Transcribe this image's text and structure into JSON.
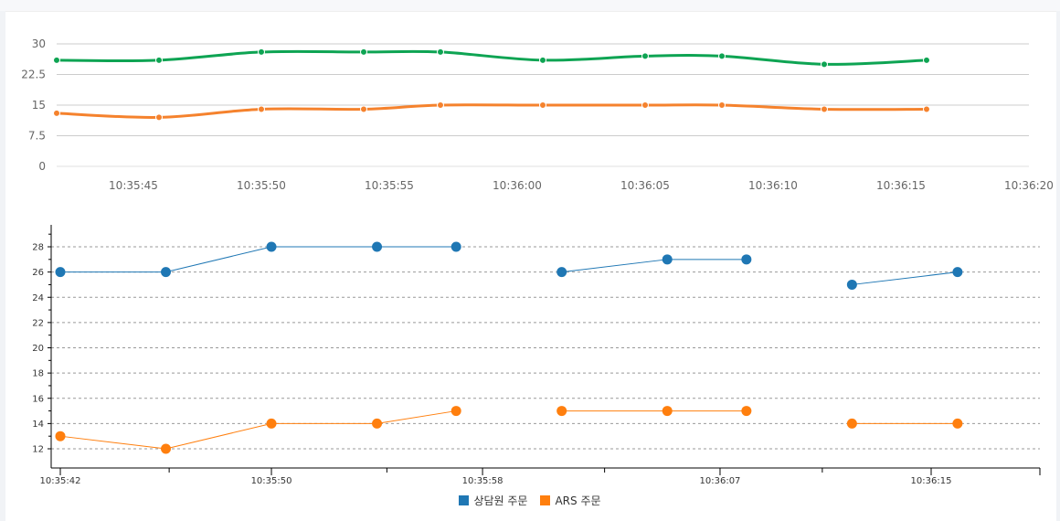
{
  "chart_data": [
    {
      "type": "line",
      "smooth": true,
      "x": [
        "10:35:42",
        "10:35:46",
        "10:35:50",
        "10:35:54",
        "10:35:57",
        "10:36:01",
        "10:36:05",
        "10:36:08",
        "10:36:12",
        "10:36:16"
      ],
      "series": [
        {
          "name": "상담원 주문",
          "color": "#0ea453",
          "values": [
            26,
            26,
            28,
            28,
            28,
            26,
            27,
            27,
            25,
            26
          ]
        },
        {
          "name": "ARS 주문",
          "color": "#f5822d",
          "values": [
            13,
            12,
            14,
            14,
            15,
            15,
            15,
            15,
            14,
            14
          ]
        }
      ],
      "ylim": [
        0,
        30
      ],
      "yticks": [
        "0",
        "7.5",
        "15",
        "22.5",
        "30"
      ],
      "xticks": [
        "10:35:45",
        "10:35:50",
        "10:35:55",
        "10:36:00",
        "10:36:05",
        "10:36:10",
        "10:36:15",
        "10:36:20"
      ],
      "grid": true,
      "legend": "none"
    },
    {
      "type": "line",
      "x": [
        "10:35:42",
        "10:35:46",
        "10:35:50",
        "10:35:54",
        "10:35:57",
        "10:36:01",
        "10:36:05",
        "10:36:08",
        "10:36:12",
        "10:36:16"
      ],
      "series": [
        {
          "name": "상담원 주문",
          "color": "#1f77b4",
          "values": [
            26,
            26,
            28,
            28,
            28,
            26,
            27,
            27,
            25,
            26
          ]
        },
        {
          "name": "ARS 주문",
          "color": "#ff7f0e",
          "values": [
            13,
            12,
            14,
            14,
            15,
            15,
            15,
            15,
            14,
            14
          ]
        }
      ],
      "breaks_after": [
        "10:35:57",
        "10:36:08"
      ],
      "ylim": [
        11,
        29.5
      ],
      "yticks": [
        "12",
        "14",
        "16",
        "18",
        "20",
        "22",
        "24",
        "26",
        "28"
      ],
      "xticks": [
        "10:35:42",
        "10:35:50",
        "10:35:58",
        "10:36:07",
        "10:36:15"
      ],
      "grid": "dashed",
      "legend": "bottom-center"
    }
  ]
}
